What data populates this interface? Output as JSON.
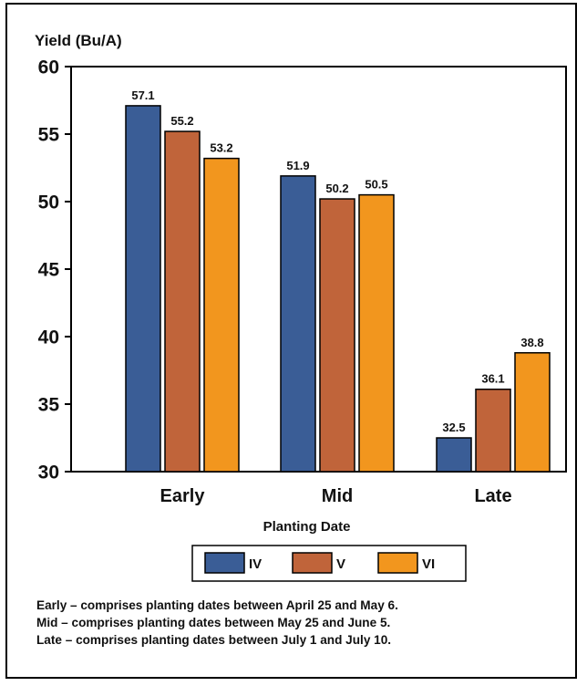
{
  "chart_data": {
    "type": "bar",
    "title": "",
    "ylabel": "Yield (Bu/A)",
    "xlabel": "Planting Date",
    "categories": [
      "Early",
      "Mid",
      "Late"
    ],
    "ylim": [
      30,
      60
    ],
    "yticks": [
      30,
      35,
      40,
      45,
      50,
      55,
      60
    ],
    "grid": false,
    "legend_position": "bottom-center",
    "series": [
      {
        "name": "IV",
        "color": "#3a5d96",
        "values": [
          57.1,
          51.9,
          32.5
        ]
      },
      {
        "name": "V",
        "color": "#c0643a",
        "values": [
          55.2,
          50.2,
          36.1
        ]
      },
      {
        "name": "VI",
        "color": "#f2961e",
        "values": [
          53.2,
          50.5,
          38.8
        ]
      }
    ],
    "data_labels": true
  },
  "notes": [
    "Early – comprises planting dates between April 25 and May 6.",
    "Mid – comprises planting dates between May 25 and June 5.",
    "Late – comprises planting dates between July 1 and July 10."
  ]
}
